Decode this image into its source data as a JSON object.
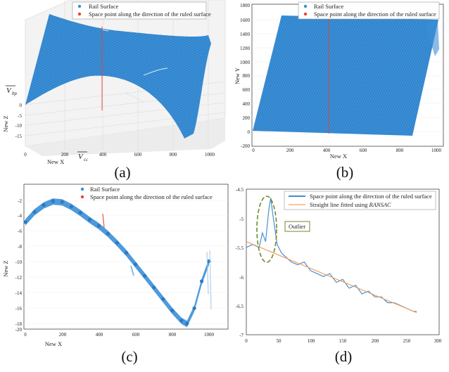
{
  "colors": {
    "surface": "#3b8fd6",
    "surface_dark": "#2a7bc2",
    "space_point": "#e8443a",
    "fit_line": "#f0a060",
    "curve": "#4a90d0",
    "ellipse": "#6f8a2c",
    "panel": "#f3f3f3",
    "grid": "#dcdcdc"
  },
  "panels": {
    "a": {
      "caption": "(a)",
      "xlabel": "New X",
      "ylabel": "New Z",
      "vec_bp": "V",
      "vec_bp_sub": "bp",
      "vec_cc": "V",
      "vec_cc_sub": "cc",
      "legend": [
        "Rail Surface",
        "Space point along the direction of the ruled surface"
      ],
      "xticks": [
        "0",
        "200",
        "400",
        "600",
        "800",
        "1000"
      ],
      "yticks": [
        "0",
        "-5",
        "-10",
        "-15"
      ]
    },
    "b": {
      "caption": "(b)",
      "xlabel": "New X",
      "ylabel": "New Y",
      "legend": [
        "Rail Surface",
        "Space point along the direction of the ruled surface"
      ],
      "xticks": [
        "0",
        "200",
        "400",
        "600",
        "800",
        "1000"
      ],
      "yticks": [
        "1800",
        "1600",
        "1400",
        "1200",
        "1000",
        "800",
        "600",
        "400",
        "200",
        "0",
        "-200"
      ]
    },
    "c": {
      "caption": "(c)",
      "xlabel": "New X",
      "ylabel": "New Z",
      "legend": [
        "Rail Surface",
        "Space point along the direction of the ruled surface"
      ],
      "xticks": [
        "0",
        "200",
        "400",
        "600",
        "800",
        "1000"
      ],
      "yticks": [
        "-2",
        "-4",
        "-6",
        "-8",
        "-10",
        "-12",
        "-14",
        "-16",
        "-18",
        "-20"
      ]
    },
    "d": {
      "caption": "(d)",
      "legend_line1": "Space point along the direction of the ruled surface",
      "legend_line2_prefix": "Straight line fitted using ",
      "legend_line2_em": "RANSAC",
      "outlier_label": "Outlier",
      "xticks": [
        "0",
        "50",
        "100",
        "150",
        "200",
        "250",
        "300"
      ],
      "yticks": [
        "-4.5",
        "-5",
        "-5.5",
        "-6",
        "-6.5",
        "-7"
      ]
    }
  },
  "chart_data": [
    {
      "type": "scatter",
      "panel": "a",
      "view": "3d",
      "xlabel": "New X",
      "ylabel": "New Z",
      "series": [
        {
          "name": "Rail Surface"
        },
        {
          "name": "Space point along the direction of the ruled surface"
        }
      ]
    },
    {
      "type": "scatter",
      "panel": "b",
      "xlabel": "New X",
      "ylabel": "New Y",
      "xlim": [
        0,
        1050
      ],
      "ylim": [
        -200,
        1800
      ],
      "series": [
        {
          "name": "Rail Surface",
          "polygon": [
            [
              0,
              0
            ],
            [
              160,
              1640
            ],
            [
              1000,
              1620
            ],
            [
              850,
              -60
            ]
          ]
        },
        {
          "name": "Space point along the direction of the ruled surface",
          "x": [
            410,
            410
          ],
          "y": [
            -20,
            1620
          ]
        }
      ]
    },
    {
      "type": "scatter",
      "panel": "c",
      "xlabel": "New X",
      "ylabel": "New Z",
      "xlim": [
        0,
        1050
      ],
      "ylim": [
        -20,
        -1
      ],
      "series": [
        {
          "name": "Rail Surface",
          "x": [
            0,
            50,
            100,
            150,
            200,
            250,
            300,
            350,
            400,
            450,
            500,
            550,
            600,
            650,
            700,
            750,
            800,
            850,
            880,
            920,
            960,
            1000
          ],
          "y": [
            -4.8,
            -3.5,
            -2.6,
            -2.1,
            -2.2,
            -2.8,
            -3.6,
            -4.5,
            -5.3,
            -6.3,
            -7.5,
            -8.8,
            -10.3,
            -11.8,
            -13.3,
            -14.8,
            -16.3,
            -17.6,
            -18.0,
            -16.0,
            -12.5,
            -9.9
          ]
        },
        {
          "name": "Space point along the direction of the ruled surface",
          "x": [
            410,
            415
          ],
          "y": [
            -4.5,
            -6.5
          ]
        }
      ]
    },
    {
      "type": "line",
      "panel": "d",
      "xlim": [
        0,
        300
      ],
      "ylim": [
        -7,
        -4.5
      ],
      "x": [
        0,
        10,
        20,
        25,
        30,
        35,
        38,
        42,
        48,
        55,
        60,
        70,
        80,
        90,
        100,
        110,
        120,
        130,
        140,
        150,
        160,
        170,
        180,
        190,
        200,
        210,
        220,
        230,
        240,
        250,
        260,
        265
      ],
      "series": [
        {
          "name": "Space point along the direction of the ruled surface",
          "y": [
            -5.5,
            -5.45,
            -5.5,
            -5.25,
            -5.4,
            -4.85,
            -4.65,
            -5.0,
            -5.45,
            -5.6,
            -5.65,
            -5.75,
            -5.8,
            -5.75,
            -5.9,
            -5.95,
            -6.0,
            -5.95,
            -6.1,
            -6.05,
            -6.2,
            -6.15,
            -6.3,
            -6.25,
            -6.35,
            -6.35,
            -6.45,
            -6.45,
            -6.5,
            -6.55,
            -6.6,
            -6.6
          ]
        },
        {
          "name": "Straight line fitted using RANSAC",
          "x": [
            0,
            265
          ],
          "y": [
            -5.4,
            -6.62
          ]
        }
      ]
    }
  ]
}
